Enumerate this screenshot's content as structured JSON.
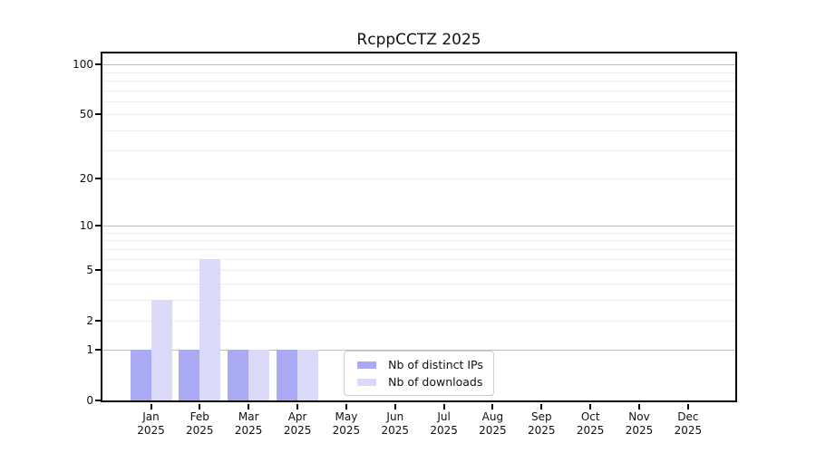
{
  "chart_data": {
    "type": "bar",
    "title": "RcppCCTZ 2025",
    "categories": [
      "Jan",
      "Feb",
      "Mar",
      "Apr",
      "May",
      "Jun",
      "Jul",
      "Aug",
      "Sep",
      "Oct",
      "Nov",
      "Dec"
    ],
    "category_year": "2025",
    "series": [
      {
        "name": "Nb of distinct IPs",
        "color": "#a9a9f4",
        "values": [
          1,
          1,
          1,
          1,
          0,
          0,
          0,
          0,
          0,
          0,
          0,
          0
        ]
      },
      {
        "name": "Nb of downloads",
        "color": "#dadaf8",
        "values": [
          3,
          6,
          1,
          1,
          0,
          0,
          0,
          0,
          0,
          0,
          0,
          0
        ]
      }
    ],
    "y_scale": "log1p",
    "y_ticks": [
      100,
      50,
      20,
      10,
      5,
      2,
      1,
      0
    ],
    "major_gridlines": [
      1,
      10,
      100
    ],
    "minor_gridlines": [
      2,
      3,
      4,
      5,
      6,
      7,
      8,
      9,
      20,
      30,
      40,
      50,
      60,
      70,
      80,
      90
    ],
    "ylim": [
      0,
      116
    ],
    "grid": "horizontal",
    "legend_position": "bottom-center",
    "colors": {
      "axis": "#000000",
      "major_grid": "#bdbdbd",
      "minor_grid": "#ececec",
      "text": "#111111"
    }
  }
}
